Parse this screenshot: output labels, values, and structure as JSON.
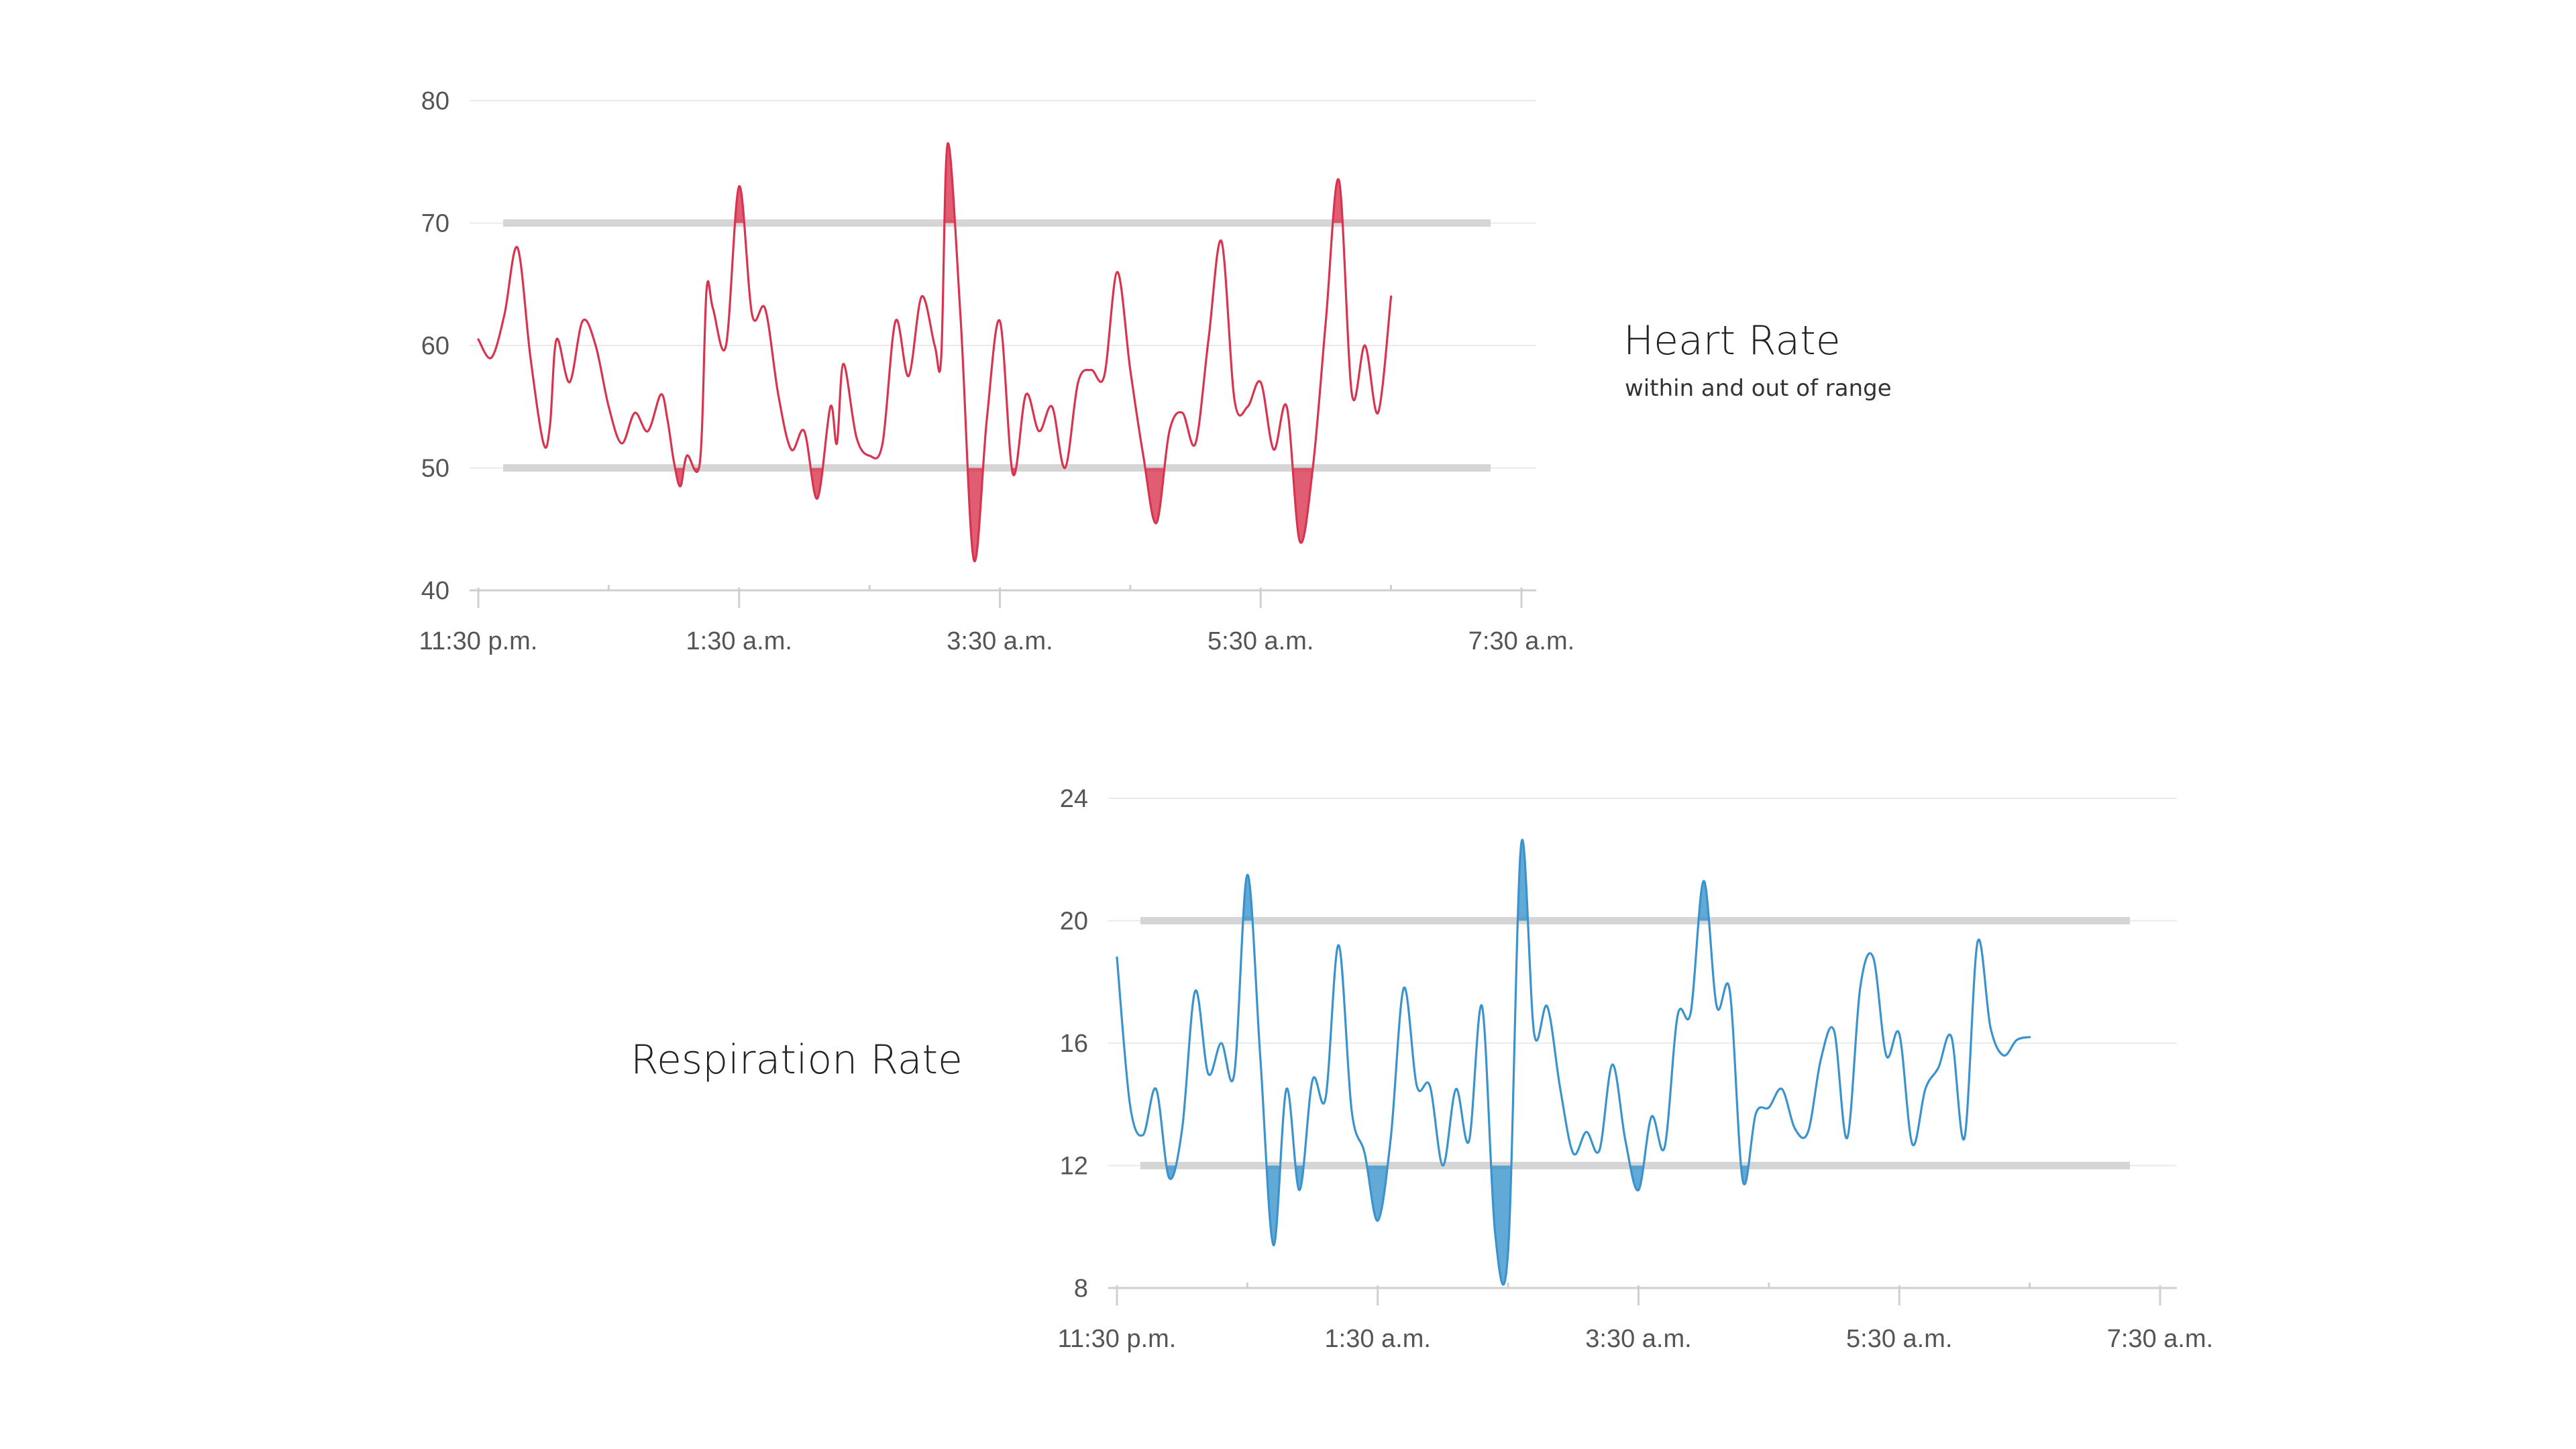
{
  "colors": {
    "heart": "#d8344f",
    "respiration": "#3a93cc",
    "band": "#d5d5d5",
    "grid": "#ebebeb",
    "axis": "#cfcfcf",
    "text": "#555555"
  },
  "chart_data": [
    {
      "type": "line",
      "title": "Heart Rate",
      "subtitle": "within and out of range",
      "xlabel": "",
      "ylabel": "",
      "ylim": [
        40,
        80
      ],
      "yticks": [
        "40",
        "50",
        "60",
        "70",
        "80"
      ],
      "xticks": [
        "11:30 p.m.",
        "1:30 a.m.",
        "3:30 a.m.",
        "5:30 a.m.",
        "7:30 a.m."
      ],
      "xlim_hours": [
        0,
        8
      ],
      "range": {
        "low": 50,
        "high": 70
      },
      "series": [
        {
          "name": "Heart Rate",
          "x": [
            0,
            0.1,
            0.2,
            0.3,
            0.4,
            0.5,
            0.55,
            0.6,
            0.7,
            0.8,
            0.9,
            1.0,
            1.1,
            1.2,
            1.3,
            1.4,
            1.45,
            1.5,
            1.55,
            1.6,
            1.7,
            1.75,
            1.8,
            1.9,
            2.0,
            2.1,
            2.2,
            2.3,
            2.4,
            2.5,
            2.6,
            2.7,
            2.75,
            2.8,
            2.9,
            3.0,
            3.1,
            3.2,
            3.3,
            3.4,
            3.5,
            3.55,
            3.6,
            3.7,
            3.8,
            3.9,
            4.0,
            4.1,
            4.2,
            4.3,
            4.4,
            4.5,
            4.6,
            4.7,
            4.8,
            4.9,
            5.0,
            5.1,
            5.2,
            5.3,
            5.4,
            5.5,
            5.6,
            5.7,
            5.8,
            5.9,
            6.0,
            6.1,
            6.2,
            6.3,
            6.4,
            6.5,
            6.6,
            6.7,
            6.8,
            6.9,
            7.0
          ],
          "values": [
            60.5,
            59,
            62.5,
            68,
            59,
            52,
            53.5,
            60.5,
            57,
            62,
            60,
            55,
            52,
            54.5,
            53,
            56,
            54,
            50.5,
            48.5,
            51,
            50.5,
            64.5,
            63,
            60,
            73,
            62.5,
            63,
            56,
            51.5,
            53,
            47.5,
            55,
            52,
            58.5,
            52.5,
            51,
            52,
            62,
            57.5,
            64,
            60,
            59,
            76.5,
            62,
            42.5,
            54,
            62,
            49.5,
            56,
            53,
            55,
            50,
            57,
            58,
            57.5,
            66,
            58,
            51,
            45.5,
            53,
            54.5,
            52,
            60.5,
            68.5,
            55.5,
            55,
            57,
            51.5,
            55,
            44,
            50,
            62,
            73.5,
            56,
            60,
            54.5,
            64
          ]
        }
      ]
    },
    {
      "type": "line",
      "title": "Respiration Rate",
      "xlabel": "",
      "ylabel": "",
      "ylim": [
        8,
        24
      ],
      "yticks": [
        "8",
        "12",
        "16",
        "20",
        "24"
      ],
      "xticks": [
        "11:30 p.m.",
        "1:30 a.m.",
        "3:30 a.m.",
        "5:30 a.m.",
        "7:30 a.m."
      ],
      "xlim_hours": [
        0,
        8
      ],
      "range": {
        "low": 12,
        "high": 20
      },
      "series": [
        {
          "name": "Respiration Rate",
          "x": [
            0,
            0.1,
            0.2,
            0.3,
            0.4,
            0.5,
            0.6,
            0.7,
            0.8,
            0.9,
            1.0,
            1.1,
            1.2,
            1.3,
            1.4,
            1.5,
            1.6,
            1.7,
            1.8,
            1.9,
            2.0,
            2.1,
            2.2,
            2.3,
            2.4,
            2.5,
            2.6,
            2.7,
            2.8,
            2.9,
            3.0,
            3.1,
            3.2,
            3.3,
            3.4,
            3.5,
            3.6,
            3.7,
            3.8,
            3.9,
            4.0,
            4.1,
            4.2,
            4.3,
            4.4,
            4.5,
            4.6,
            4.7,
            4.8,
            4.9,
            5.0,
            5.1,
            5.2,
            5.3,
            5.4,
            5.5,
            5.6,
            5.7,
            5.8,
            5.9,
            6.0,
            6.1,
            6.2,
            6.3,
            6.4,
            6.5,
            6.6,
            6.7,
            6.8,
            6.9,
            7.0
          ],
          "values": [
            18.8,
            14,
            13,
            14.5,
            11.6,
            13.2,
            17.7,
            15,
            16,
            15,
            21.5,
            15.5,
            9.4,
            14.5,
            11.2,
            14.8,
            14.2,
            19.2,
            13.8,
            12.4,
            10.2,
            12.9,
            17.8,
            14.6,
            14.6,
            12,
            14.5,
            12.8,
            17.2,
            9.8,
            9.2,
            22.5,
            16.3,
            17.2,
            14.5,
            12.4,
            13.1,
            12.5,
            15.3,
            12.8,
            11.2,
            13.6,
            12.6,
            16.9,
            17,
            21.3,
            17.2,
            17.7,
            11.5,
            13.7,
            13.9,
            14.5,
            13.2,
            13.1,
            15.5,
            16.4,
            12.9,
            17.8,
            18.8,
            15.6,
            16.3,
            12.7,
            14.5,
            15.2,
            16.2,
            12.9,
            19.3,
            16.5,
            15.6,
            16.1,
            16.2
          ]
        }
      ]
    }
  ]
}
